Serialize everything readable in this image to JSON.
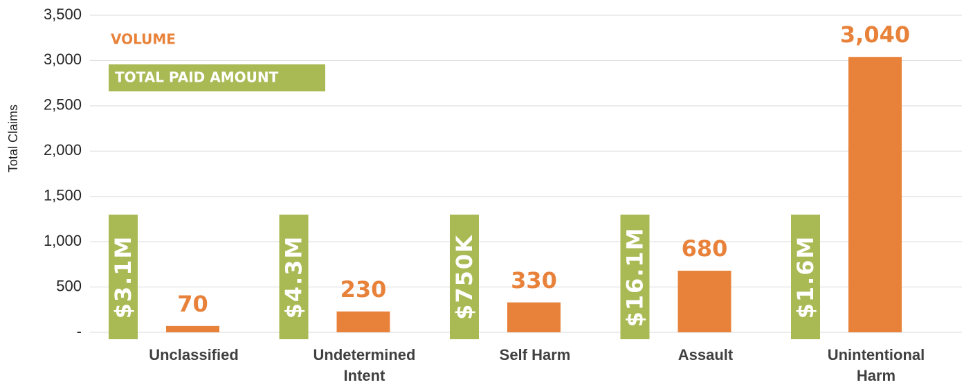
{
  "chart_data": {
    "type": "bar",
    "y_axis_label": "Total Claims",
    "legend": [
      "VOLUME",
      "TOTAL PAID AMOUNT"
    ],
    "categories": [
      "Unclassified",
      "Undetermined Intent",
      "Self Harm",
      "Assault",
      "Unintentional Harm"
    ],
    "series": [
      {
        "name": "VOLUME",
        "color": "#e8823a",
        "values": [
          70,
          230,
          330,
          680,
          3040
        ],
        "value_labels": [
          "70",
          "230",
          "330",
          "680",
          "3,040"
        ]
      },
      {
        "name": "TOTAL PAID AMOUNT",
        "color": "#a9b954",
        "values": [
          3100000,
          4300000,
          750000,
          16100000,
          1600000
        ],
        "value_labels": [
          "$3.1M",
          "$4.3M",
          "$750K",
          "$16.1M",
          "$1.6M"
        ]
      }
    ],
    "ylim": [
      0,
      3500
    ],
    "yticks": [
      {
        "value": 0,
        "label": "-"
      },
      500,
      {
        "value": 1000,
        "label": "1,000"
      },
      {
        "value": 1500,
        "label": "1,500"
      },
      {
        "value": 2000,
        "label": "2,000"
      },
      {
        "value": 2500,
        "label": "2,500"
      },
      {
        "value": 3000,
        "label": "3,000"
      },
      {
        "value": 3500,
        "label": "3,500"
      }
    ],
    "grid": true
  }
}
